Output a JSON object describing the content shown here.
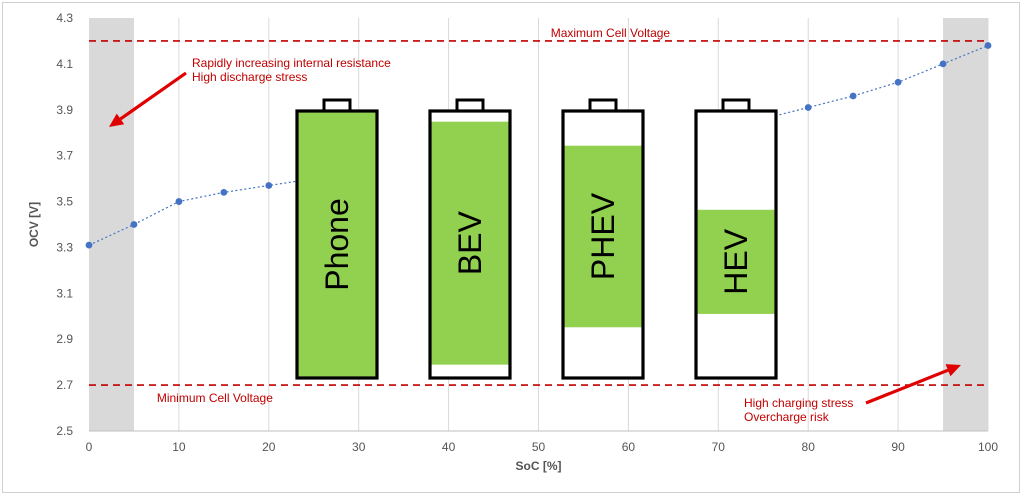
{
  "chart_data": {
    "type": "scatter",
    "title": "",
    "xlabel": "SoC [%]",
    "ylabel": "OCV [V]",
    "xlim": [
      0,
      100
    ],
    "ylim": [
      2.5,
      4.3
    ],
    "xticks": [
      0,
      10,
      20,
      30,
      40,
      50,
      60,
      70,
      80,
      90,
      100
    ],
    "yticks": [
      2.5,
      2.7,
      2.9,
      3.1,
      3.3,
      3.5,
      3.7,
      3.9,
      4.1,
      4.3
    ],
    "grid": "vertical",
    "series": [
      {
        "name": "",
        "color": "#4472c4",
        "trendline": "dotted",
        "points": [
          {
            "x": 0,
            "y": 3.31
          },
          {
            "x": 5,
            "y": 3.4
          },
          {
            "x": 10,
            "y": 3.5
          },
          {
            "x": 15,
            "y": 3.54
          },
          {
            "x": 20,
            "y": 3.57
          },
          {
            "x": 80,
            "y": 3.91
          },
          {
            "x": 85,
            "y": 3.96
          },
          {
            "x": 90,
            "y": 4.02
          },
          {
            "x": 95,
            "y": 4.1
          },
          {
            "x": 100,
            "y": 4.18
          }
        ]
      }
    ],
    "shaded_regions": [
      {
        "x0": 0,
        "x1": 5,
        "color": "#d9d9d9"
      },
      {
        "x0": 95,
        "x1": 100,
        "color": "#d9d9d9"
      }
    ],
    "reference_lines": [
      {
        "y": 4.2,
        "label": "Maximum Cell Voltage",
        "color": "#c00000",
        "style": "dashed"
      },
      {
        "y": 2.7,
        "label": "Minimum Cell Voltage",
        "color": "#c00000",
        "style": "dashed"
      }
    ],
    "annotations": [
      {
        "lines": [
          "Rapidly increasing internal resistance",
          "High discharge stress"
        ],
        "color": "#c00000"
      },
      {
        "lines": [
          "High charging stress",
          "Overcharge risk"
        ],
        "color": "#c00000"
      }
    ],
    "batteries": [
      {
        "label": "Phone",
        "fill_from": 0.0,
        "fill_to": 1.0
      },
      {
        "label": "BEV",
        "fill_from": 0.05,
        "fill_to": 0.96
      },
      {
        "label": "PHEV",
        "fill_from": 0.19,
        "fill_to": 0.87
      },
      {
        "label": "HEV",
        "fill_from": 0.24,
        "fill_to": 0.63
      }
    ],
    "battery_fill_color": "#92d050"
  }
}
